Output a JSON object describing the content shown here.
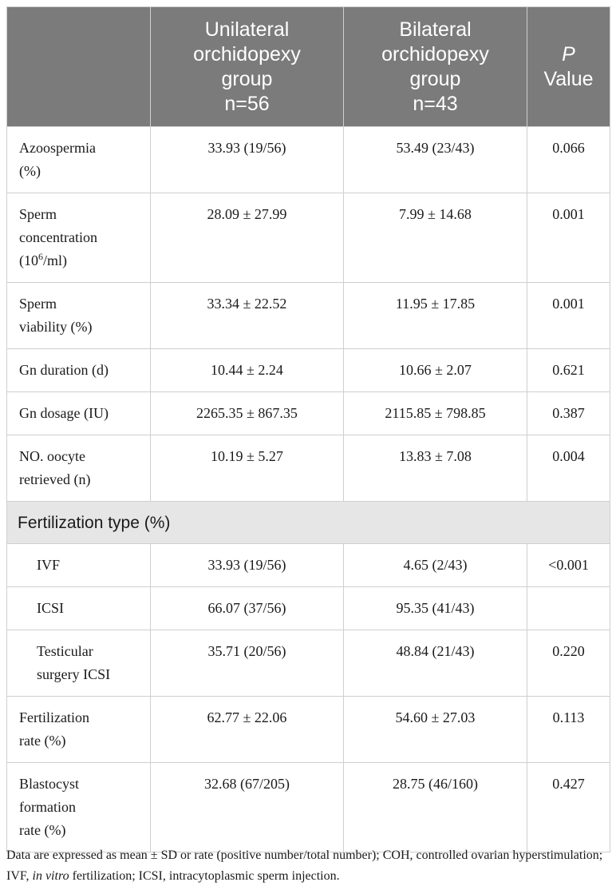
{
  "header": {
    "col1": [
      "Unilateral",
      "orchidopexy",
      "group",
      "n=56"
    ],
    "col2": [
      "Bilateral",
      "orchidopexy",
      "group",
      "n=43"
    ],
    "col3_italic": "P",
    "col3_rest": "Value"
  },
  "rows": [
    {
      "label": [
        "Azoospermia",
        "(%)"
      ],
      "uni": "33.93 (19/56)",
      "bi": "53.49 (23/43)",
      "p": "0.066"
    },
    {
      "label": [
        "Sperm",
        "concentration"
      ],
      "label_line3_pre": "(10",
      "label_line3_sup": "6",
      "label_line3_post": "/ml)",
      "uni": "28.09 ± 27.99",
      "bi": "7.99 ± 14.68",
      "p": "0.001"
    },
    {
      "label": [
        "Sperm",
        "viability (%)"
      ],
      "uni": "33.34 ± 22.52",
      "bi": "11.95 ± 17.85",
      "p": "0.001"
    },
    {
      "label": [
        "Gn duration (d)"
      ],
      "uni": "10.44 ± 2.24",
      "bi": "10.66 ± 2.07",
      "p": "0.621"
    },
    {
      "label": [
        "Gn dosage (IU)"
      ],
      "uni": "2265.35 ± 867.35",
      "bi": "2115.85 ± 798.85",
      "p": "0.387"
    },
    {
      "label": [
        "NO. oocyte",
        "retrieved (n)"
      ],
      "uni": "10.19 ± 5.27",
      "bi": "13.83 ± 7.08",
      "p": "0.004"
    },
    {
      "section": "Fertilization type (%)"
    },
    {
      "label": [
        "IVF"
      ],
      "uni": "33.93 (19/56)",
      "bi": "4.65 (2/43)",
      "p": "<0.001"
    },
    {
      "label": [
        "ICSI"
      ],
      "uni": "66.07 (37/56)",
      "bi": "95.35 (41/43)",
      "p": ""
    },
    {
      "label": [
        "Testicular",
        "surgery ICSI"
      ],
      "uni": "35.71 (20/56)",
      "bi": "48.84 (21/43)",
      "p": "0.220"
    },
    {
      "label": [
        "Fertilization",
        "rate (%)"
      ],
      "uni": "62.77 ± 22.06",
      "bi": "54.60 ± 27.03",
      "p": "0.113"
    },
    {
      "label": [
        "Blastocyst",
        "formation",
        "rate (%)"
      ],
      "uni": "32.68 (67/205)",
      "bi": "28.75 (46/160)",
      "p": "0.427"
    }
  ],
  "footnote": {
    "part1": "Data are expressed as mean ± SD or rate (positive number/total number); COH, controlled ovarian hyperstimulation; IVF, ",
    "italic": "in vitro",
    "part2": " fertilization; ICSI, intracytoplasmic sperm injection."
  }
}
